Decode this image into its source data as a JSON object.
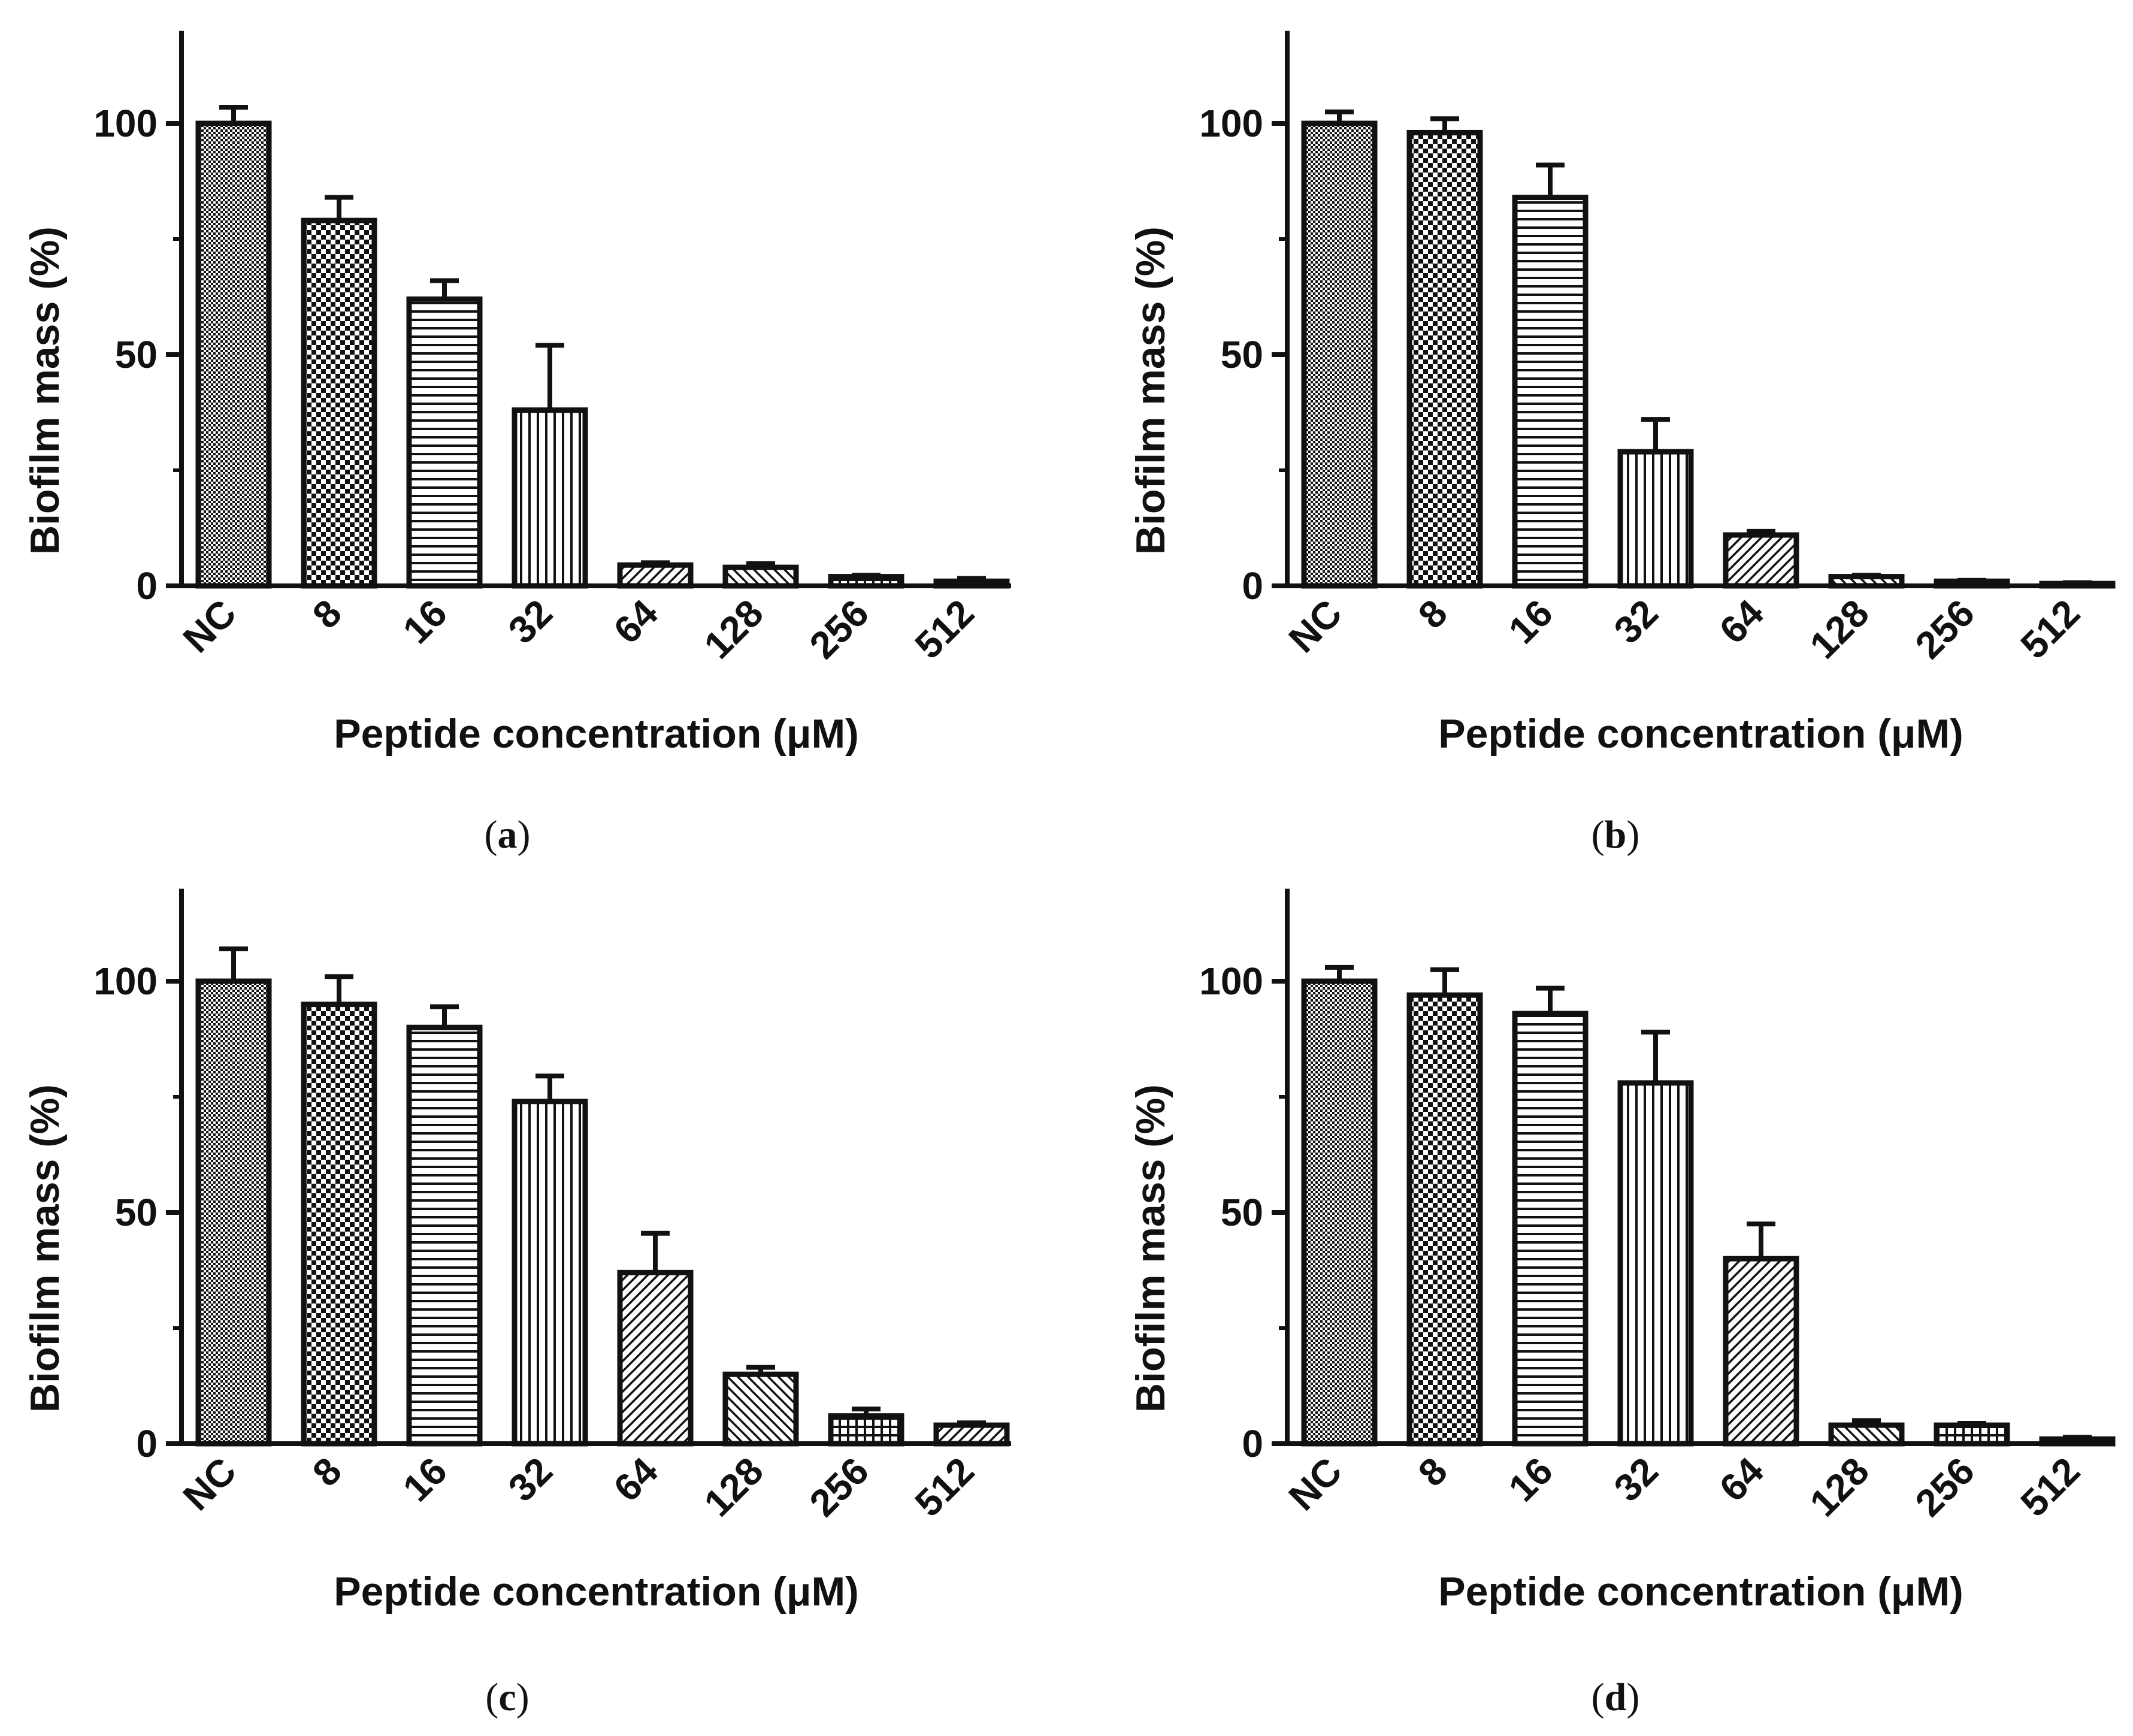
{
  "chart_data": [
    {
      "type": "bar",
      "panel": "a",
      "caption": {
        "open": "(",
        "letter": "a",
        "close": ")"
      },
      "categories": [
        "NC",
        "8",
        "16",
        "32",
        "64",
        "128",
        "256",
        "512"
      ],
      "values": [
        100,
        79,
        62,
        38,
        4.5,
        4,
        2,
        1
      ],
      "errors": [
        3.5,
        5,
        4,
        14,
        0.5,
        0.8,
        0.3,
        0.6
      ],
      "xlabel": "Peptide concentration (μM)",
      "ylabel": "Biofilm mass (%)",
      "ylim": [
        0,
        120
      ],
      "yticks": [
        0,
        50,
        100
      ],
      "grid": false,
      "error_bars": "upper"
    },
    {
      "type": "bar",
      "panel": "b",
      "caption": {
        "open": "(",
        "letter": "b",
        "close": ")"
      },
      "categories": [
        "NC",
        "8",
        "16",
        "32",
        "64",
        "128",
        "256",
        "512"
      ],
      "values": [
        100,
        98,
        84,
        29,
        11,
        2,
        1,
        0.5
      ],
      "errors": [
        2.5,
        3,
        7,
        7,
        0.8,
        0.3,
        0.2,
        0.2
      ],
      "xlabel": "Peptide concentration (μM)",
      "ylabel": "Biofilm mass (%)",
      "ylim": [
        0,
        120
      ],
      "yticks": [
        0,
        50,
        100
      ],
      "grid": false,
      "error_bars": "upper"
    },
    {
      "type": "bar",
      "panel": "c",
      "caption": {
        "open": "(",
        "letter": "c",
        "close": ")"
      },
      "categories": [
        "NC",
        "8",
        "16",
        "32",
        "64",
        "128",
        "256",
        "512"
      ],
      "values": [
        100,
        95,
        90,
        74,
        37,
        15,
        6,
        4
      ],
      "errors": [
        7,
        6,
        4.5,
        5.5,
        8.5,
        1.5,
        1.5,
        0.5
      ],
      "xlabel": "Peptide concentration (μM)",
      "ylabel": "Biofilm mass (%)",
      "ylim": [
        0,
        120
      ],
      "yticks": [
        0,
        50,
        100
      ],
      "grid": false,
      "error_bars": "upper"
    },
    {
      "type": "bar",
      "panel": "d",
      "caption": {
        "open": "(",
        "letter": "d",
        "close": ")"
      },
      "categories": [
        "NC",
        "8",
        "16",
        "32",
        "64",
        "128",
        "256",
        "512"
      ],
      "values": [
        100,
        97,
        93,
        78,
        40,
        4,
        4,
        1
      ],
      "errors": [
        3,
        5.5,
        5.5,
        11,
        7.5,
        1,
        0.4,
        0.4
      ],
      "xlabel": "Peptide concentration (μM)",
      "ylabel": "Biofilm mass (%)",
      "ylim": [
        0,
        120
      ],
      "yticks": [
        0,
        50,
        100
      ],
      "grid": false,
      "error_bars": "upper"
    }
  ],
  "fill_patterns": {
    "NC": "fine-checker",
    "8": "checkerboard",
    "16": "horizontal-lines",
    "32": "vertical-lines",
    "64": "diagonal-lines",
    "128": "diagonal-lines",
    "256": "diagonal-lines",
    "512": "diagonal-lines"
  },
  "colors": {
    "ink": "#111111",
    "background": "#ffffff"
  }
}
